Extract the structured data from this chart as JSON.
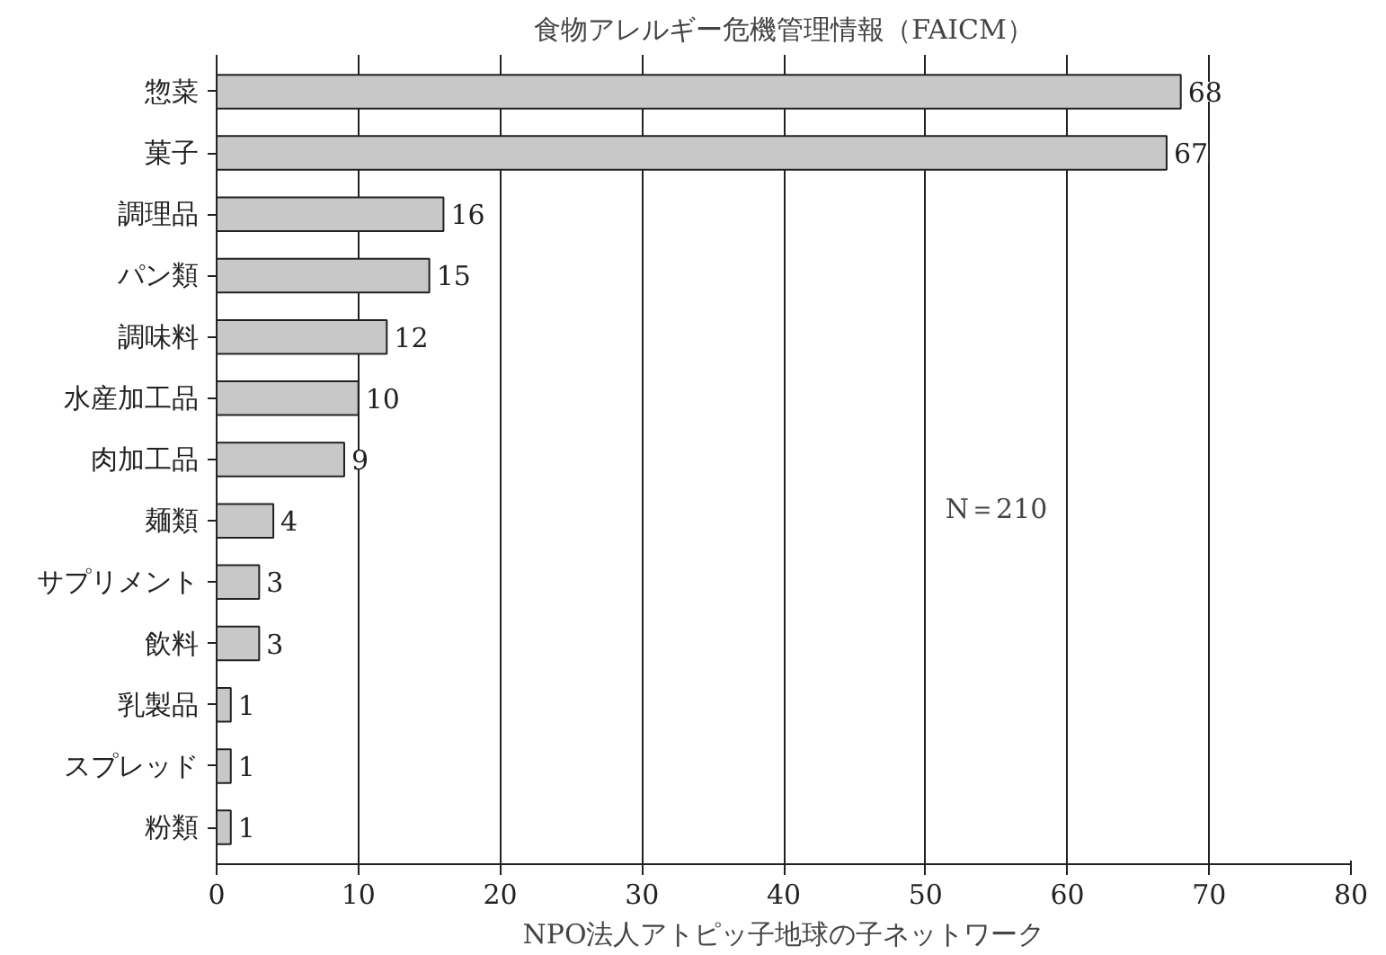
{
  "chart_data": {
    "type": "bar",
    "orientation": "horizontal",
    "title": "食物アレルギー危機管理情報（FAICM）",
    "xlabel": "NPO法人アトピッ子地球の子ネットワーク",
    "categories": [
      "惣菜",
      "菓子",
      "調理品",
      "パン類",
      "調味料",
      "水産加工品",
      "肉加工品",
      "麺類",
      "サプリメント",
      "飲料",
      "乳製品",
      "スプレッド",
      "粉類"
    ],
    "values": [
      68,
      67,
      16,
      15,
      12,
      10,
      9,
      4,
      3,
      3,
      1,
      1,
      1
    ],
    "color": "#c8c8c8",
    "xlim": [
      0,
      80
    ],
    "xticks": [
      0,
      10,
      20,
      30,
      40,
      50,
      60,
      70,
      80
    ],
    "grid": "x",
    "data_labels": true,
    "annotations": [
      "N＝210"
    ]
  }
}
